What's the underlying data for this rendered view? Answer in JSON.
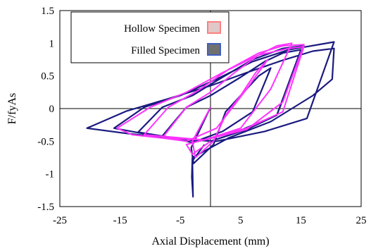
{
  "chart_data": {
    "type": "line",
    "title": "",
    "xlabel": "Axial Displacement (mm)",
    "ylabel": "F/fyAs",
    "xlim": [
      -25,
      25
    ],
    "ylim": [
      -1.5,
      1.5
    ],
    "xticks": [
      -25,
      -15,
      -5,
      5,
      15,
      25
    ],
    "yticks": [
      -1.5,
      -1,
      -0.5,
      0,
      0.5,
      1,
      1.5
    ],
    "xtick_labels": [
      "-25",
      "-15",
      "-5",
      "5",
      "15",
      "25"
    ],
    "ytick_labels": [
      "-1.5",
      "-1",
      "-0.5",
      "0",
      "0.5",
      "1",
      "1.5"
    ],
    "legend_position": "top-left",
    "grid": false,
    "series": [
      {
        "name": "Filled Specimen",
        "color": "#1a1a80",
        "x": [
          0,
          -3.2,
          -2.8,
          0.5,
          2.5,
          5,
          8,
          10,
          7,
          2,
          -3,
          -8,
          -4,
          0,
          5,
          9,
          12,
          15,
          11,
          6,
          0,
          -6,
          -12,
          -8,
          -3,
          2,
          7,
          12,
          15.5,
          11,
          5,
          -2,
          -9,
          -16,
          -11,
          -5,
          1,
          7,
          13,
          20.5,
          16,
          9,
          1,
          -7,
          -14,
          -20.5,
          -14,
          -7,
          0,
          6,
          12,
          17,
          20.5,
          20.2,
          17,
          10,
          3,
          -3,
          -3.1,
          -2.9,
          -3,
          -1
        ],
        "y": [
          0.02,
          -0.6,
          -0.84,
          -0.55,
          -0.05,
          0.2,
          0.5,
          0.62,
          -0.05,
          -0.35,
          -0.52,
          -0.42,
          0.02,
          0.2,
          0.48,
          0.72,
          0.85,
          0.9,
          -0.1,
          -0.32,
          -0.5,
          -0.45,
          -0.36,
          0.02,
          0.2,
          0.48,
          0.75,
          0.92,
          0.96,
          -0.1,
          -0.33,
          -0.5,
          -0.42,
          -0.3,
          0.02,
          0.2,
          0.45,
          0.72,
          0.9,
          1.02,
          -0.15,
          -0.35,
          -0.5,
          -0.45,
          -0.38,
          -0.3,
          -0.04,
          0.15,
          0.35,
          0.55,
          0.74,
          0.88,
          0.92,
          0.45,
          0.2,
          -0.2,
          -0.45,
          -0.75,
          -1.05,
          -1.35,
          -0.8,
          -0.55
        ]
      },
      {
        "name": "Hollow Specimen",
        "color": "#ff33ff",
        "x": [
          0,
          -3,
          -2.5,
          0.5,
          2.5,
          5,
          7.5,
          9.5,
          6,
          1,
          -4,
          -8,
          -4,
          0,
          4,
          8,
          11,
          13.5,
          10,
          5,
          -1,
          -6,
          -11,
          -7,
          -2,
          3,
          8,
          12,
          15.5,
          12,
          6,
          -1,
          -8,
          -13,
          -15.5,
          -10,
          -4,
          2,
          8,
          13,
          15.5,
          12,
          6,
          0,
          -4,
          -3,
          0
        ],
        "y": [
          0.02,
          -0.5,
          -0.75,
          -0.5,
          -0.1,
          0.2,
          0.55,
          0.75,
          0.3,
          -0.3,
          -0.5,
          -0.45,
          0.02,
          0.25,
          0.55,
          0.82,
          0.96,
          1,
          0.3,
          -0.3,
          -0.48,
          -0.44,
          -0.4,
          0.02,
          0.28,
          0.6,
          0.85,
          0.96,
          0.98,
          0.1,
          -0.32,
          -0.48,
          -0.45,
          -0.4,
          -0.3,
          0.02,
          0.25,
          0.55,
          0.82,
          0.92,
          0.95,
          -0.05,
          -0.3,
          -0.45,
          -0.55,
          -0.7,
          -0.5
        ]
      }
    ]
  },
  "legend": {
    "items": [
      {
        "label": "Hollow Specimen",
        "swatch_fill": "#e0c8c8",
        "swatch_stroke": "#ff8080"
      },
      {
        "label": "Filled Specimen",
        "swatch_fill": "#707070",
        "swatch_stroke": "#4060c0"
      }
    ]
  }
}
